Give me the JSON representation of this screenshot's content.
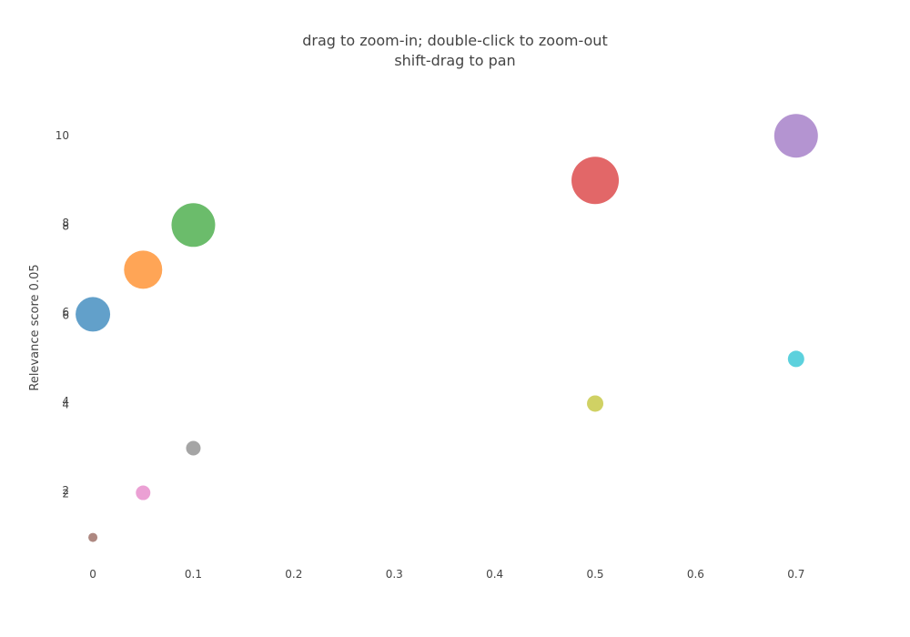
{
  "chart_data": {
    "type": "scatter",
    "title_lines": [
      "drag to zoom-in; double-click to zoom-out",
      "shift-drag to pan"
    ],
    "xlabel": "",
    "ylabel": "Relevance score 0.05",
    "xlim": [
      -0.02,
      0.75
    ],
    "ylim": [
      0.4,
      10.8
    ],
    "grid": false,
    "x_ticks": [
      {
        "value": 0,
        "label": "0"
      },
      {
        "value": 0.1,
        "label": "0.1"
      },
      {
        "value": 0.2,
        "label": "0.2"
      },
      {
        "value": 0.3,
        "label": "0.3"
      },
      {
        "value": 0.4,
        "label": "0.4"
      },
      {
        "value": 0.5,
        "label": "0.5"
      },
      {
        "value": 0.6,
        "label": "0.6"
      },
      {
        "value": 0.7,
        "label": "0.7"
      }
    ],
    "y_ticks": [
      {
        "value": 10,
        "label": "10"
      },
      {
        "value": 8.05,
        "label": "8"
      },
      {
        "value": 7.98,
        "label": "8"
      },
      {
        "value": 6.05,
        "label": "6"
      },
      {
        "value": 5.98,
        "label": "6"
      },
      {
        "value": 4.05,
        "label": "4"
      },
      {
        "value": 3.98,
        "label": "4"
      },
      {
        "value": 2.05,
        "label": "2"
      },
      {
        "value": 1.98,
        "label": "2"
      }
    ],
    "points": [
      {
        "x": 0.0,
        "y": 6,
        "size": 38,
        "color": "#1f77b4"
      },
      {
        "x": 0.05,
        "y": 7,
        "size": 42,
        "color": "#ff7f0e"
      },
      {
        "x": 0.1,
        "y": 8,
        "size": 48,
        "color": "#2ca02c"
      },
      {
        "x": 0.5,
        "y": 9,
        "size": 52,
        "color": "#d62728"
      },
      {
        "x": 0.7,
        "y": 10,
        "size": 48,
        "color": "#9467bd"
      },
      {
        "x": 0.0,
        "y": 1,
        "size": 10,
        "color": "#8c564b"
      },
      {
        "x": 0.05,
        "y": 2,
        "size": 16,
        "color": "#e377c2"
      },
      {
        "x": 0.1,
        "y": 3,
        "size": 16,
        "color": "#7f7f7f"
      },
      {
        "x": 0.5,
        "y": 4,
        "size": 18,
        "color": "#bcbd22"
      },
      {
        "x": 0.7,
        "y": 5,
        "size": 18,
        "color": "#17becf"
      }
    ]
  }
}
